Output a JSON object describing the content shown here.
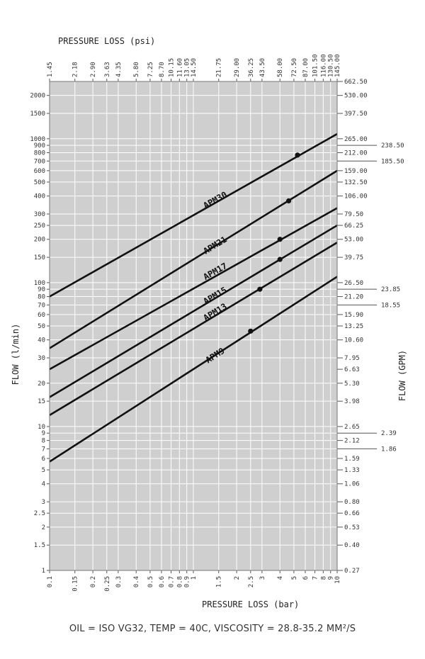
{
  "chart_data": {
    "type": "line",
    "x_axis_bottom": {
      "label": "PRESSURE LOSS (bar)",
      "scale": "log",
      "range": [
        0.1,
        10
      ],
      "tick_labels": [
        "0.1",
        "0.15",
        "0.2",
        "0.25",
        "0.3",
        "0.4",
        "0.5",
        "0.6",
        "0.7",
        "0.8",
        "0.9",
        "1",
        "1.5",
        "2",
        "2.5",
        "3",
        "4",
        "5",
        "6",
        "7",
        "8",
        "9",
        "10"
      ],
      "tick_values": [
        0.1,
        0.15,
        0.2,
        0.25,
        0.3,
        0.4,
        0.5,
        0.6,
        0.7,
        0.8,
        0.9,
        1,
        1.5,
        2,
        2.5,
        3,
        4,
        5,
        6,
        7,
        8,
        9,
        10
      ]
    },
    "x_axis_top": {
      "label": "PRESSURE LOSS (psi)",
      "tick_labels": [
        "1.45",
        "2.18",
        "2.90",
        "3.63",
        "4.35",
        "5.80",
        "7.25",
        "8.70",
        "10.15",
        "11.60",
        "13.05",
        "14.50",
        "21.75",
        "29.00",
        "36.25",
        "43.50",
        "58.00",
        "72.50",
        "87.00",
        "101.50",
        "116.00",
        "130.50",
        "145.00"
      ],
      "tick_values_bar": [
        0.1,
        0.15,
        0.2,
        0.25,
        0.3,
        0.4,
        0.5,
        0.6,
        0.7,
        0.8,
        0.9,
        1,
        1.5,
        2,
        2.5,
        3,
        4,
        5,
        6,
        7,
        8,
        9,
        10
      ]
    },
    "y_axis_left": {
      "label": "FLOW (l/min)",
      "scale": "log",
      "range": [
        1,
        2500
      ],
      "tick_labels": [
        "1",
        "1.5",
        "2",
        "2.5",
        "3",
        "4",
        "5",
        "6",
        "7",
        "8",
        "9",
        "10",
        "15",
        "20",
        "30",
        "40",
        "50",
        "60",
        "70",
        "80",
        "90",
        "100",
        "150",
        "200",
        "250",
        "300",
        "400",
        "500",
        "600",
        "700",
        "800",
        "900",
        "1000",
        "1500",
        "2000"
      ],
      "tick_values": [
        1,
        1.5,
        2,
        2.5,
        3,
        4,
        5,
        6,
        7,
        8,
        9,
        10,
        15,
        20,
        30,
        40,
        50,
        60,
        70,
        80,
        90,
        100,
        150,
        200,
        250,
        300,
        400,
        500,
        600,
        700,
        800,
        900,
        1000,
        1500,
        2000
      ]
    },
    "y_axis_right": {
      "label": "FLOW (GPM)",
      "tick_labels": [
        "0.27",
        "0.40",
        "0.53",
        "0.66",
        "0.80",
        "1.06",
        "1.33",
        "1.59",
        "2.12",
        "2.65",
        "3.98",
        "5.30",
        "6.63",
        "7.95",
        "10.60",
        "13.25",
        "15.90",
        "21.20",
        "26.50",
        "39.75",
        "53.00",
        "66.25",
        "79.50",
        "106.00",
        "132.50",
        "159.00",
        "212.00",
        "265.00",
        "397.50",
        "530.00",
        "662.50"
      ],
      "tick_values_lpm": [
        1,
        1.5,
        2,
        2.5,
        3,
        4,
        5,
        6,
        8,
        10,
        15,
        20,
        25,
        30,
        40,
        50,
        60,
        80,
        100,
        150,
        200,
        250,
        300,
        400,
        500,
        600,
        800,
        1000,
        1500,
        2000,
        2500
      ],
      "callouts": [
        {
          "label": "238.50",
          "lpm": 900
        },
        {
          "label": "185.50",
          "lpm": 700
        },
        {
          "label": "23.85",
          "lpm": 90
        },
        {
          "label": "18.55",
          "lpm": 70
        },
        {
          "label": "2.39",
          "lpm": 9
        },
        {
          "label": "1.86",
          "lpm": 7
        }
      ]
    },
    "series": [
      {
        "name": "APM30",
        "start": [
          0.1,
          80
        ],
        "end": [
          10,
          1080
        ],
        "max_point": [
          5.3,
          770
        ],
        "label_at": [
          1.45,
          360
        ]
      },
      {
        "name": "APM21",
        "start": [
          0.1,
          35
        ],
        "end": [
          10,
          600
        ],
        "max_point": [
          4.6,
          370
        ],
        "label_at": [
          1.45,
          175
        ]
      },
      {
        "name": "APM17",
        "start": [
          0.1,
          25
        ],
        "end": [
          10,
          330
        ],
        "max_point": [
          4.0,
          200
        ],
        "label_at": [
          1.45,
          115
        ]
      },
      {
        "name": "APM15",
        "start": [
          0.1,
          16
        ],
        "end": [
          10,
          250
        ],
        "max_point": [
          4.0,
          145
        ],
        "label_at": [
          1.45,
          78
        ]
      },
      {
        "name": "APM13",
        "start": [
          0.1,
          12
        ],
        "end": [
          10,
          190
        ],
        "max_point": [
          2.9,
          90
        ],
        "label_at": [
          1.45,
          60
        ]
      },
      {
        "name": "APM9",
        "start": [
          0.1,
          5.7
        ],
        "end": [
          10,
          110
        ],
        "max_point": [
          2.5,
          46
        ],
        "label_at": [
          1.45,
          30
        ]
      }
    ],
    "note": "OIL = ISO VG32, TEMP = 40C, VISCOSITY = 28.8-35.2 MM²/S"
  }
}
